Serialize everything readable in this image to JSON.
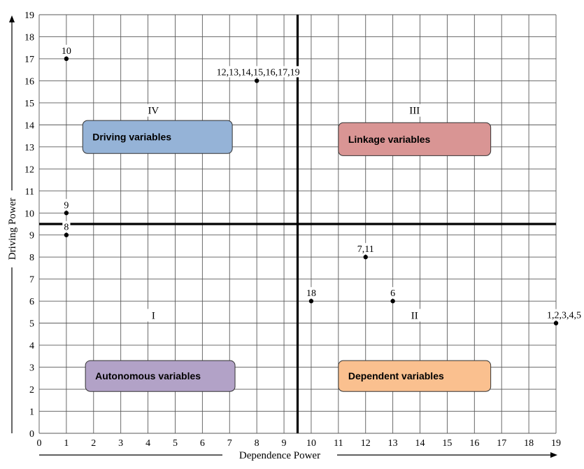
{
  "chart_data": {
    "type": "scatter",
    "title": "",
    "xlabel": "Dependence Power",
    "ylabel": "Driving Power",
    "xlim": [
      0,
      19
    ],
    "ylim": [
      0,
      19
    ],
    "grid": true,
    "x_ticks": [
      "0",
      "1",
      "2",
      "3",
      "4",
      "5",
      "6",
      "7",
      "8",
      "9",
      "10",
      "11",
      "12",
      "13",
      "14",
      "15",
      "16",
      "17",
      "18",
      "19"
    ],
    "y_ticks": [
      "0",
      "1",
      "2",
      "3",
      "4",
      "5",
      "6",
      "7",
      "8",
      "9",
      "10",
      "11",
      "12",
      "13",
      "14",
      "15",
      "16",
      "17",
      "18",
      "19"
    ],
    "divider_x": 9.5,
    "divider_y": 9.5,
    "points": [
      {
        "x": 1,
        "y": 17,
        "label": "10"
      },
      {
        "x": 8,
        "y": 16,
        "label": "12,13,14,15,16,17,19"
      },
      {
        "x": 1,
        "y": 10,
        "label": "9"
      },
      {
        "x": 1,
        "y": 9,
        "label": "8"
      },
      {
        "x": 12,
        "y": 8,
        "label": "7,11"
      },
      {
        "x": 10,
        "y": 6,
        "label": "18"
      },
      {
        "x": 13,
        "y": 6,
        "label": "6"
      },
      {
        "x": 19,
        "y": 5,
        "label": "1,2,3,4,5"
      }
    ],
    "quadrant_numbers": [
      {
        "text": "IV",
        "x": 4.2,
        "y": 14.5
      },
      {
        "text": "III",
        "x": 13.8,
        "y": 14.5
      },
      {
        "text": "I",
        "x": 4.2,
        "y": 5.2
      },
      {
        "text": "II",
        "x": 13.8,
        "y": 5.2
      }
    ],
    "quadrant_boxes": [
      {
        "label": "Driving variables",
        "x0": 1.6,
        "x1": 7.1,
        "y0": 12.7,
        "y1": 14.2,
        "color": "#95b3d7"
      },
      {
        "label": "Linkage variables",
        "x0": 11.0,
        "x1": 16.6,
        "y0": 12.6,
        "y1": 14.1,
        "color": "#d99594"
      },
      {
        "label": "Autonomous variables",
        "x0": 1.7,
        "x1": 7.2,
        "y0": 1.9,
        "y1": 3.3,
        "color": "#b2a2c7"
      },
      {
        "label": "Dependent variables",
        "x0": 11.0,
        "x1": 16.6,
        "y0": 1.9,
        "y1": 3.3,
        "color": "#fac08f"
      }
    ]
  }
}
